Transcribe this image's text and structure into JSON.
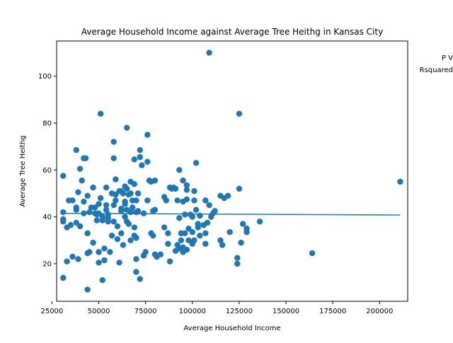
{
  "chart_data": {
    "type": "scatter",
    "title": "Average Household Income against Average Tree Heithg in Kansas City",
    "xlabel": "Average Household Income",
    "ylabel": "Average Tree Heithg",
    "xlim": [
      27500,
      215000
    ],
    "ylim": [
      4,
      115
    ],
    "x_ticks": [
      25000,
      50000,
      75000,
      100000,
      125000,
      150000,
      175000,
      200000
    ],
    "x_tick_labels": [
      "25000",
      "50000",
      "75000",
      "100000",
      "125000",
      "150000",
      "175000",
      "200000"
    ],
    "y_ticks": [
      20,
      40,
      60,
      80,
      100
    ],
    "y_tick_labels": [
      "20",
      "40",
      "60",
      "80",
      "100"
    ],
    "grid": false,
    "annotations": [
      "P V",
      "Rsquared"
    ],
    "colors": {
      "points": "#1f77b4",
      "line": "#1f77b4"
    },
    "trend_line": {
      "x": [
        30000,
        211000
      ],
      "y": [
        41.5,
        40.8
      ]
    },
    "points": [
      [
        31000,
        14
      ],
      [
        31000,
        38
      ],
      [
        31000,
        42
      ],
      [
        31000,
        57.5
      ],
      [
        31000,
        39
      ],
      [
        33000,
        21
      ],
      [
        33000,
        35.5
      ],
      [
        34000,
        47
      ],
      [
        35000,
        36.5
      ],
      [
        36000,
        23
      ],
      [
        36000,
        47
      ],
      [
        38000,
        43
      ],
      [
        38000,
        44
      ],
      [
        38000,
        37.5
      ],
      [
        38000,
        68.5
      ],
      [
        39000,
        22
      ],
      [
        39000,
        50.5
      ],
      [
        40000,
        36
      ],
      [
        40000,
        60.5
      ],
      [
        41000,
        55.5
      ],
      [
        42000,
        46.5
      ],
      [
        42000,
        65
      ],
      [
        42000,
        41.5
      ],
      [
        43000,
        65
      ],
      [
        44000,
        9
      ],
      [
        44000,
        33
      ],
      [
        44000,
        49
      ],
      [
        44000,
        24.5
      ],
      [
        45000,
        42
      ],
      [
        45000,
        25
      ],
      [
        46000,
        44
      ],
      [
        47000,
        29
      ],
      [
        47000,
        52.5
      ],
      [
        48000,
        44
      ],
      [
        48000,
        41.5
      ],
      [
        49000,
        41
      ],
      [
        49000,
        38.5
      ],
      [
        50000,
        45.5
      ],
      [
        50000,
        41.5
      ],
      [
        50000,
        25
      ],
      [
        50000,
        20.5
      ],
      [
        51000,
        84
      ],
      [
        51000,
        48
      ],
      [
        52000,
        13
      ],
      [
        52000,
        40
      ],
      [
        52000,
        38.5
      ],
      [
        53000,
        21.5
      ],
      [
        53000,
        26.5
      ],
      [
        54000,
        52.5
      ],
      [
        54000,
        45
      ],
      [
        54000,
        43
      ],
      [
        55000,
        38
      ],
      [
        55000,
        41
      ],
      [
        55000,
        39.5
      ],
      [
        56000,
        25
      ],
      [
        57000,
        32
      ],
      [
        57000,
        50
      ],
      [
        58000,
        72
      ],
      [
        58000,
        65
      ],
      [
        58000,
        45
      ],
      [
        58000,
        38
      ],
      [
        59000,
        56
      ],
      [
        59000,
        47
      ],
      [
        59000,
        49.5
      ],
      [
        60000,
        30.5
      ],
      [
        60000,
        36
      ],
      [
        61000,
        51
      ],
      [
        61000,
        20.5
      ],
      [
        62000,
        33
      ],
      [
        62000,
        51
      ],
      [
        62000,
        43.5
      ],
      [
        62000,
        42.5
      ],
      [
        63000,
        28
      ],
      [
        63000,
        50
      ],
      [
        64000,
        53
      ],
      [
        64000,
        46.5
      ],
      [
        64000,
        45.5
      ],
      [
        64000,
        40
      ],
      [
        65000,
        78
      ],
      [
        65000,
        52
      ],
      [
        65000,
        43
      ],
      [
        65000,
        38
      ],
      [
        66000,
        37
      ],
      [
        66000,
        49.5
      ],
      [
        67000,
        55
      ],
      [
        67000,
        50
      ],
      [
        67000,
        42
      ],
      [
        67000,
        30
      ],
      [
        68000,
        47
      ],
      [
        68000,
        44
      ],
      [
        69000,
        54
      ],
      [
        69000,
        64.5
      ],
      [
        69000,
        35.5
      ],
      [
        69000,
        32
      ],
      [
        70000,
        16.5
      ],
      [
        70000,
        42
      ],
      [
        70000,
        22
      ],
      [
        70000,
        47
      ],
      [
        70000,
        31
      ],
      [
        71000,
        50
      ],
      [
        71000,
        42.5
      ],
      [
        72000,
        13.5
      ],
      [
        72000,
        65.5
      ],
      [
        72000,
        68.5
      ],
      [
        73000,
        62
      ],
      [
        74000,
        41.5
      ],
      [
        74000,
        23.5
      ],
      [
        75000,
        25
      ],
      [
        76000,
        75
      ],
      [
        76000,
        63.5
      ],
      [
        76000,
        47
      ],
      [
        77000,
        55.5
      ],
      [
        78000,
        55
      ],
      [
        78000,
        33
      ],
      [
        79000,
        42.5
      ],
      [
        79000,
        32
      ],
      [
        80000,
        55.5
      ],
      [
        80000,
        43
      ],
      [
        80000,
        24
      ],
      [
        81000,
        23
      ],
      [
        83000,
        24
      ],
      [
        85000,
        35.5
      ],
      [
        85000,
        48.5
      ],
      [
        86000,
        47
      ],
      [
        87000,
        28.5
      ],
      [
        87000,
        33
      ],
      [
        88000,
        52.5
      ],
      [
        88000,
        21
      ],
      [
        89000,
        52
      ],
      [
        90000,
        52.5
      ],
      [
        91000,
        25.5
      ],
      [
        91000,
        52
      ],
      [
        92000,
        28
      ],
      [
        92000,
        47
      ],
      [
        93000,
        60
      ],
      [
        93000,
        26.5
      ],
      [
        93000,
        39.5
      ],
      [
        94000,
        33
      ],
      [
        94000,
        30
      ],
      [
        95000,
        55.5
      ],
      [
        95000,
        46.5
      ],
      [
        95000,
        27
      ],
      [
        95000,
        25
      ],
      [
        96000,
        33
      ],
      [
        96000,
        41
      ],
      [
        97000,
        53.5
      ],
      [
        97000,
        51.5
      ],
      [
        97000,
        47.5
      ],
      [
        97000,
        26
      ],
      [
        98000,
        35
      ],
      [
        98000,
        30
      ],
      [
        99000,
        41
      ],
      [
        100000,
        40
      ],
      [
        100000,
        33.5
      ],
      [
        100000,
        28.5
      ],
      [
        101000,
        30
      ],
      [
        101000,
        47
      ],
      [
        101000,
        51
      ],
      [
        102000,
        63
      ],
      [
        102000,
        43
      ],
      [
        103000,
        37
      ],
      [
        103000,
        35.5
      ],
      [
        104000,
        40.5
      ],
      [
        104000,
        32
      ],
      [
        106000,
        36.5
      ],
      [
        107000,
        28.5
      ],
      [
        107000,
        33
      ],
      [
        107000,
        47
      ],
      [
        108000,
        37.5
      ],
      [
        109000,
        110
      ],
      [
        109000,
        45
      ],
      [
        110000,
        40
      ],
      [
        111000,
        41.5
      ],
      [
        112000,
        42.5
      ],
      [
        115000,
        49
      ],
      [
        115000,
        30
      ],
      [
        116000,
        28
      ],
      [
        117000,
        48
      ],
      [
        119000,
        49
      ],
      [
        120000,
        33.5
      ],
      [
        124000,
        22.5
      ],
      [
        124000,
        20
      ],
      [
        125000,
        84
      ],
      [
        125000,
        52
      ],
      [
        126000,
        29
      ],
      [
        127000,
        37
      ],
      [
        129000,
        33.5
      ],
      [
        129000,
        35
      ],
      [
        136000,
        38
      ],
      [
        164000,
        24.5
      ],
      [
        211000,
        55
      ]
    ]
  }
}
